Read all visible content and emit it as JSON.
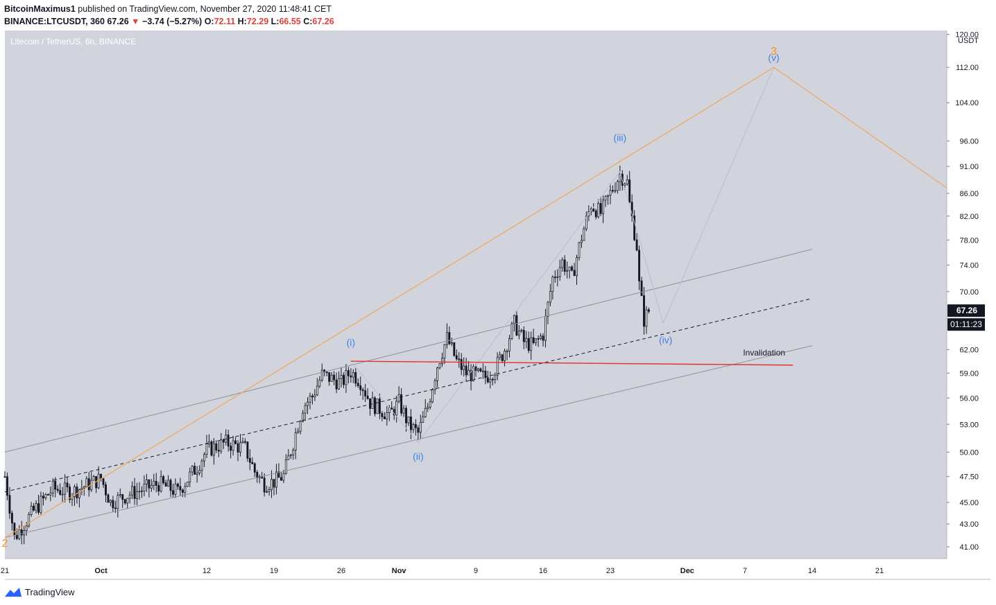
{
  "header": {
    "publisher": "BitcoinMaximus1",
    "published_text": "published on TradingView.com, November 27, 2020 11:48:41 CET",
    "symbol": "BINANCE:LTCUSDT, 360",
    "last": "67.26",
    "change": "−3.74 (−5.27%)",
    "open_label": "O:",
    "open": "72.11",
    "high_label": "H:",
    "high": "72.29",
    "low_label": "L:",
    "low": "66.55",
    "close_label": "C:",
    "close": "67.26"
  },
  "colors": {
    "pane_bg": "#d1d4dc",
    "candle": "#131722",
    "fib_line": "#f5a45a",
    "wave_label": "#3f7fe4",
    "wave_major": "#f7931a",
    "invalidation": "#e0302a",
    "channel": "#8f929a"
  },
  "footer": {
    "brand": "TradingView",
    "logo_icon": "tradingview-logo-icon"
  },
  "chart_data": {
    "type": "candlestick",
    "title": "Litecoin / TetherUS, 6h, BINANCE",
    "currency": "USDT",
    "y_scale": "log",
    "ylim": [
      40,
      121
    ],
    "y_ticks": [
      120,
      112,
      104,
      96,
      91,
      86,
      82,
      78,
      74,
      70,
      62,
      59,
      56,
      53,
      50,
      47.5,
      45,
      43,
      41
    ],
    "y_tick_labels": [
      "120.00",
      "112.00",
      "104.00",
      "96.00",
      "91.00",
      "86.00",
      "82.00",
      "78.00",
      "74.00",
      "70.00",
      "62.00",
      "59.00",
      "56.00",
      "53.00",
      "50.00",
      "47.50",
      "45.00",
      "43.00",
      "41.00"
    ],
    "x_range": [
      "2020-09-21",
      "2020-12-28"
    ],
    "x_ticks": [
      {
        "date": "2020-09-21",
        "label": "21"
      },
      {
        "date": "2020-10-01",
        "label": "Oct"
      },
      {
        "date": "2020-10-12",
        "label": "12"
      },
      {
        "date": "2020-10-19",
        "label": "19"
      },
      {
        "date": "2020-10-26",
        "label": "26"
      },
      {
        "date": "2020-11-01",
        "label": "Nov"
      },
      {
        "date": "2020-11-09",
        "label": "9"
      },
      {
        "date": "2020-11-16",
        "label": "16"
      },
      {
        "date": "2020-11-23",
        "label": "23"
      },
      {
        "date": "2020-12-01",
        "label": "Dec"
      },
      {
        "date": "2020-12-07",
        "label": "7"
      },
      {
        "date": "2020-12-14",
        "label": "14"
      },
      {
        "date": "2020-12-21",
        "label": "21"
      }
    ],
    "price_label": "67.26",
    "countdown_label": "01:11:23",
    "price_path": [
      [
        "2020-09-21",
        47.5
      ],
      [
        "2020-09-22",
        41.8
      ],
      [
        "2020-09-24",
        44.2
      ],
      [
        "2020-09-26",
        46.3
      ],
      [
        "2020-09-28",
        46.0
      ],
      [
        "2020-10-01",
        47.3
      ],
      [
        "2020-10-02",
        45.0
      ],
      [
        "2020-10-04",
        45.8
      ],
      [
        "2020-10-07",
        46.8
      ],
      [
        "2020-10-09",
        46.0
      ],
      [
        "2020-10-11",
        48.5
      ],
      [
        "2020-10-12",
        50.2
      ],
      [
        "2020-10-14",
        51.0
      ],
      [
        "2020-10-16",
        50.4
      ],
      [
        "2020-10-17",
        48.0
      ],
      [
        "2020-10-18",
        46.8
      ],
      [
        "2020-10-19",
        47.0
      ],
      [
        "2020-10-20",
        47.6
      ],
      [
        "2020-10-21",
        51.0
      ],
      [
        "2020-10-22",
        55.0
      ],
      [
        "2020-10-23",
        56.2
      ],
      [
        "2020-10-24",
        58.8
      ],
      [
        "2020-10-25",
        58.3
      ],
      [
        "2020-10-26",
        57.8
      ],
      [
        "2020-10-27",
        59.2
      ],
      [
        "2020-10-28",
        58.0
      ],
      [
        "2020-10-29",
        55.5
      ],
      [
        "2020-10-31",
        54.0
      ],
      [
        "2020-11-01",
        55.5
      ],
      [
        "2020-11-02",
        53.0
      ],
      [
        "2020-11-03",
        52.0
      ],
      [
        "2020-11-04",
        55.0
      ],
      [
        "2020-11-05",
        60.0
      ],
      [
        "2020-11-06",
        63.5
      ],
      [
        "2020-11-07",
        60.5
      ],
      [
        "2020-11-08",
        59.0
      ],
      [
        "2020-11-10",
        58.5
      ],
      [
        "2020-11-11",
        59.5
      ],
      [
        "2020-11-12",
        62.0
      ],
      [
        "2020-11-13",
        65.5
      ],
      [
        "2020-11-14",
        63.0
      ],
      [
        "2020-11-15",
        62.5
      ],
      [
        "2020-11-16",
        64.0
      ],
      [
        "2020-11-17",
        72.0
      ],
      [
        "2020-11-18",
        74.5
      ],
      [
        "2020-11-19",
        72.0
      ],
      [
        "2020-11-20",
        78.5
      ],
      [
        "2020-11-21",
        84.0
      ],
      [
        "2020-11-22",
        82.5
      ],
      [
        "2020-11-23",
        86.0
      ],
      [
        "2020-11-24",
        89.5
      ],
      [
        "2020-11-24T18",
        88.0
      ],
      [
        "2020-11-25",
        84.0
      ],
      [
        "2020-11-25T18",
        77.0
      ],
      [
        "2020-11-26",
        71.0
      ],
      [
        "2020-11-26T12",
        66.0
      ],
      [
        "2020-11-27",
        67.26
      ]
    ],
    "wave_labels": [
      {
        "text": "2",
        "date": "2020-09-21",
        "price": 41.0,
        "degree": "major"
      },
      {
        "text": "(i)",
        "date": "2020-10-27",
        "price": 62.5,
        "degree": "minor"
      },
      {
        "text": "(ii)",
        "date": "2020-11-03",
        "price": 49.2,
        "degree": "minor"
      },
      {
        "text": "(iii)",
        "date": "2020-11-24",
        "price": 96.0,
        "degree": "minor"
      },
      {
        "text": "(iv)",
        "date": "2020-11-28T18",
        "price": 62.8,
        "degree": "minor"
      },
      {
        "text": "(v)",
        "date": "2020-12-10",
        "price": 113.5,
        "degree": "minor"
      },
      {
        "text": "3",
        "date": "2020-12-10",
        "price": 115.0,
        "degree": "major"
      }
    ],
    "annotations": [
      {
        "text": "Invalidation",
        "date": "2020-12-09",
        "price": 61.2
      }
    ],
    "lines": {
      "fib_projection": [
        [
          "2020-09-21",
          41.8
        ],
        [
          "2020-12-10",
          112.0
        ],
        [
          "2020-12-28",
          87.0
        ]
      ],
      "invalidation": [
        [
          "2020-10-27",
          60.5
        ],
        [
          "2020-12-12",
          60.0
        ]
      ],
      "channel_upper": [
        [
          "2020-09-21",
          50.0
        ],
        [
          "2020-12-14",
          76.5
        ]
      ],
      "channel_mid": [
        [
          "2020-09-21",
          46.0
        ],
        [
          "2020-12-14",
          69.0
        ]
      ],
      "channel_lower": [
        [
          "2020-09-21",
          41.8
        ],
        [
          "2020-12-14",
          62.5
        ]
      ],
      "wave_path": [
        [
          "2020-10-27",
          60.5
        ],
        [
          "2020-11-03",
          51.0
        ],
        [
          "2020-11-24",
          90.0
        ],
        [
          "2020-11-28T12",
          65.5
        ],
        [
          "2020-12-10",
          112.0
        ]
      ]
    }
  }
}
